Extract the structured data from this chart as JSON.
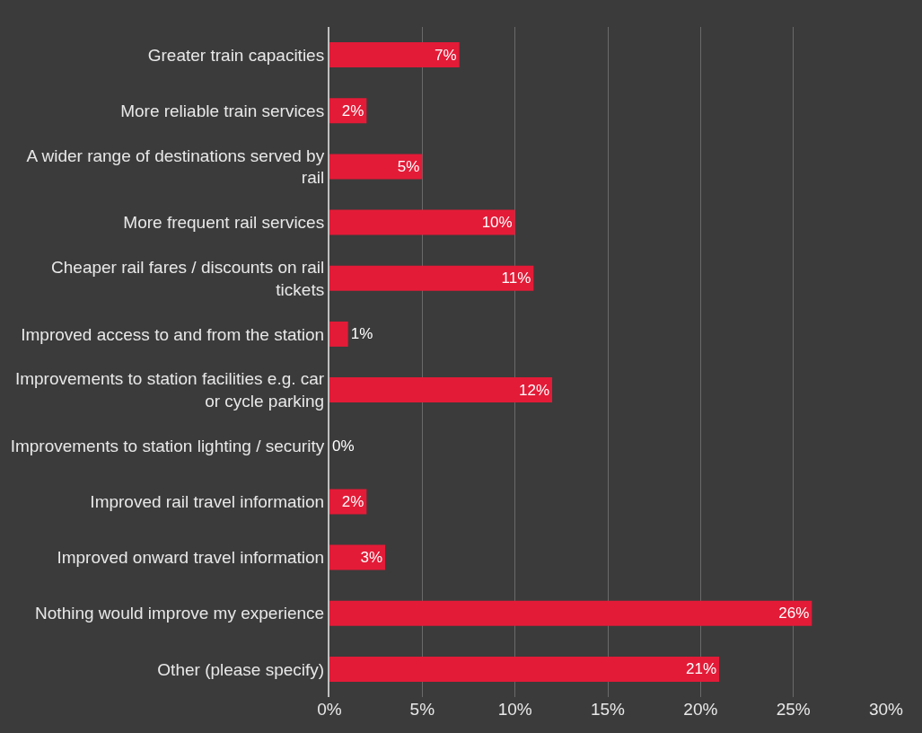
{
  "chart_data": {
    "type": "bar",
    "orientation": "horizontal",
    "categories": [
      "Greater train capacities",
      "More reliable train services",
      "A wider range of destinations served by rail",
      "More frequent rail services",
      "Cheaper rail fares / discounts on rail tickets",
      "Improved access to and from the station",
      "Improvements to station facilities e.g. car or cycle parking",
      "Improvements to station lighting / security",
      "Improved rail travel information",
      "Improved onward travel information",
      "Nothing would improve my experience",
      "Other (please specify)"
    ],
    "values": [
      7,
      2,
      5,
      10,
      11,
      1,
      12,
      0,
      2,
      3,
      26,
      21
    ],
    "value_labels": [
      "7%",
      "2%",
      "5%",
      "10%",
      "11%",
      "1%",
      "12%",
      "0%",
      "2%",
      "3%",
      "26%",
      "21%"
    ],
    "color": "#e31b37",
    "xlim": [
      0,
      30
    ],
    "xticks": [
      {
        "value": 0,
        "label": "0%"
      },
      {
        "value": 5,
        "label": "5%"
      },
      {
        "value": 10,
        "label": "10%"
      },
      {
        "value": 15,
        "label": "15%"
      },
      {
        "value": 20,
        "label": "20%"
      },
      {
        "value": 25,
        "label": "25%"
      },
      {
        "value": 30,
        "label": "30%"
      }
    ],
    "grid": "x"
  }
}
